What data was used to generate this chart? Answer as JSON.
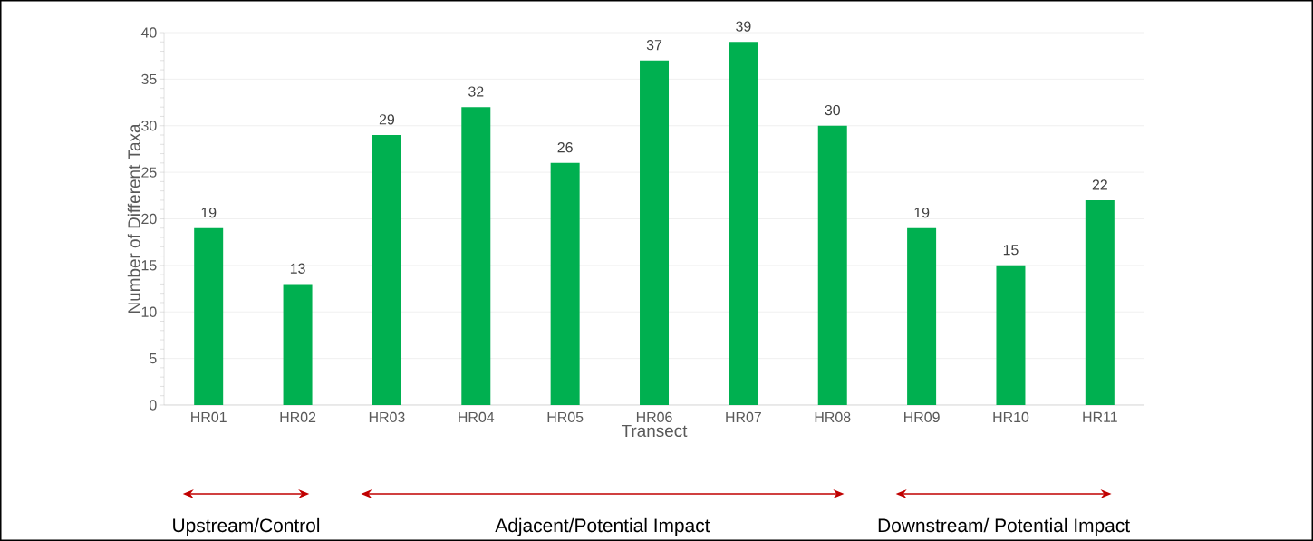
{
  "chart_data": {
    "type": "bar",
    "xlabel": "Transect",
    "ylabel": "Number of Different Taxa",
    "categories": [
      "HR01",
      "HR02",
      "HR03",
      "HR04",
      "HR05",
      "HR06",
      "HR07",
      "HR08",
      "HR09",
      "HR10",
      "HR11"
    ],
    "values": [
      19,
      13,
      29,
      32,
      26,
      37,
      39,
      30,
      19,
      15,
      22
    ],
    "color": "#00b050",
    "ylim": [
      0,
      40
    ],
    "yticks": [
      0,
      5,
      10,
      15,
      20,
      25,
      30,
      35,
      40
    ],
    "grid": "y",
    "data_labels": true,
    "annotations": [
      "Upstream/Control",
      "Adjacent/Potential Impact",
      "Downstream/ Potential Impact"
    ]
  }
}
